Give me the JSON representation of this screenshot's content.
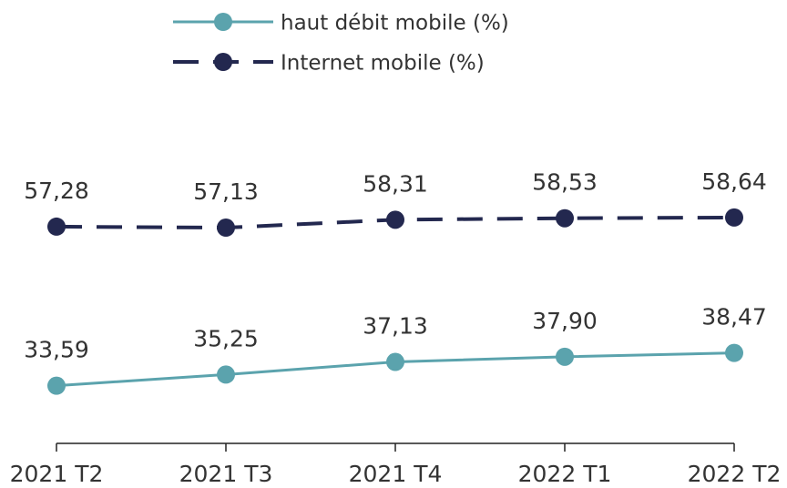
{
  "chart_data": {
    "type": "line",
    "categories": [
      "2021 T2",
      "2021 T3",
      "2021 T4",
      "2022 T1",
      "2022 T2"
    ],
    "series": [
      {
        "name": "haut débit mobile (%)",
        "color": "#5ba3ad",
        "dashed": false,
        "values": [
          33.59,
          35.25,
          37.13,
          37.9,
          38.47
        ],
        "value_labels": [
          "33,59",
          "35,25",
          "37,13",
          "37,90",
          "38,47"
        ]
      },
      {
        "name": "Internet mobile (%)",
        "color": "#23284f",
        "dashed": true,
        "values": [
          57.28,
          57.13,
          58.31,
          58.53,
          58.64
        ],
        "value_labels": [
          "57,28",
          "57,13",
          "58,31",
          "58,53",
          "58,64"
        ]
      }
    ],
    "ylim": [
      25,
      65
    ],
    "legend": "top"
  }
}
